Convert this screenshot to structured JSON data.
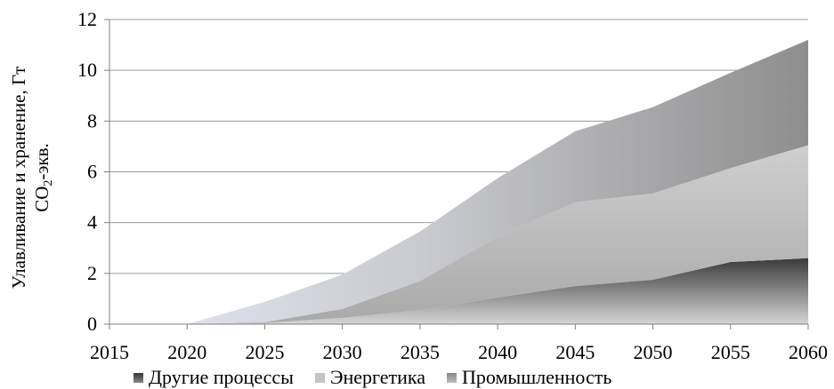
{
  "chart_data": {
    "type": "area",
    "stacked": true,
    "title": "",
    "xlabel": "",
    "ylabel": "Улавливание и хранение, Гт",
    "ylabel_line2": "CO",
    "ylabel_sub": "2",
    "ylabel_tail": "-экв.",
    "x": [
      2015,
      2020,
      2025,
      2030,
      2035,
      2040,
      2045,
      2050,
      2055,
      2060
    ],
    "ylim": [
      0,
      12
    ],
    "yticks": [
      0,
      2,
      4,
      6,
      8,
      10,
      12
    ],
    "grid": true,
    "legend_position": "bottom",
    "series": [
      {
        "name": "Другие процессы",
        "values": [
          0,
          0,
          0.05,
          0.25,
          0.55,
          1.05,
          1.5,
          1.75,
          2.45,
          2.6
        ],
        "color": "#555555"
      },
      {
        "name": "Энергетика",
        "values": [
          0,
          0,
          0.03,
          0.35,
          1.15,
          2.4,
          3.3,
          3.4,
          3.7,
          4.45
        ],
        "color": "#bdbdbd"
      },
      {
        "name": "Промышленность",
        "values": [
          0,
          0,
          0.8,
          1.35,
          1.95,
          2.3,
          2.8,
          3.4,
          3.75,
          4.15
        ],
        "color": "#a0a0a0"
      }
    ]
  }
}
